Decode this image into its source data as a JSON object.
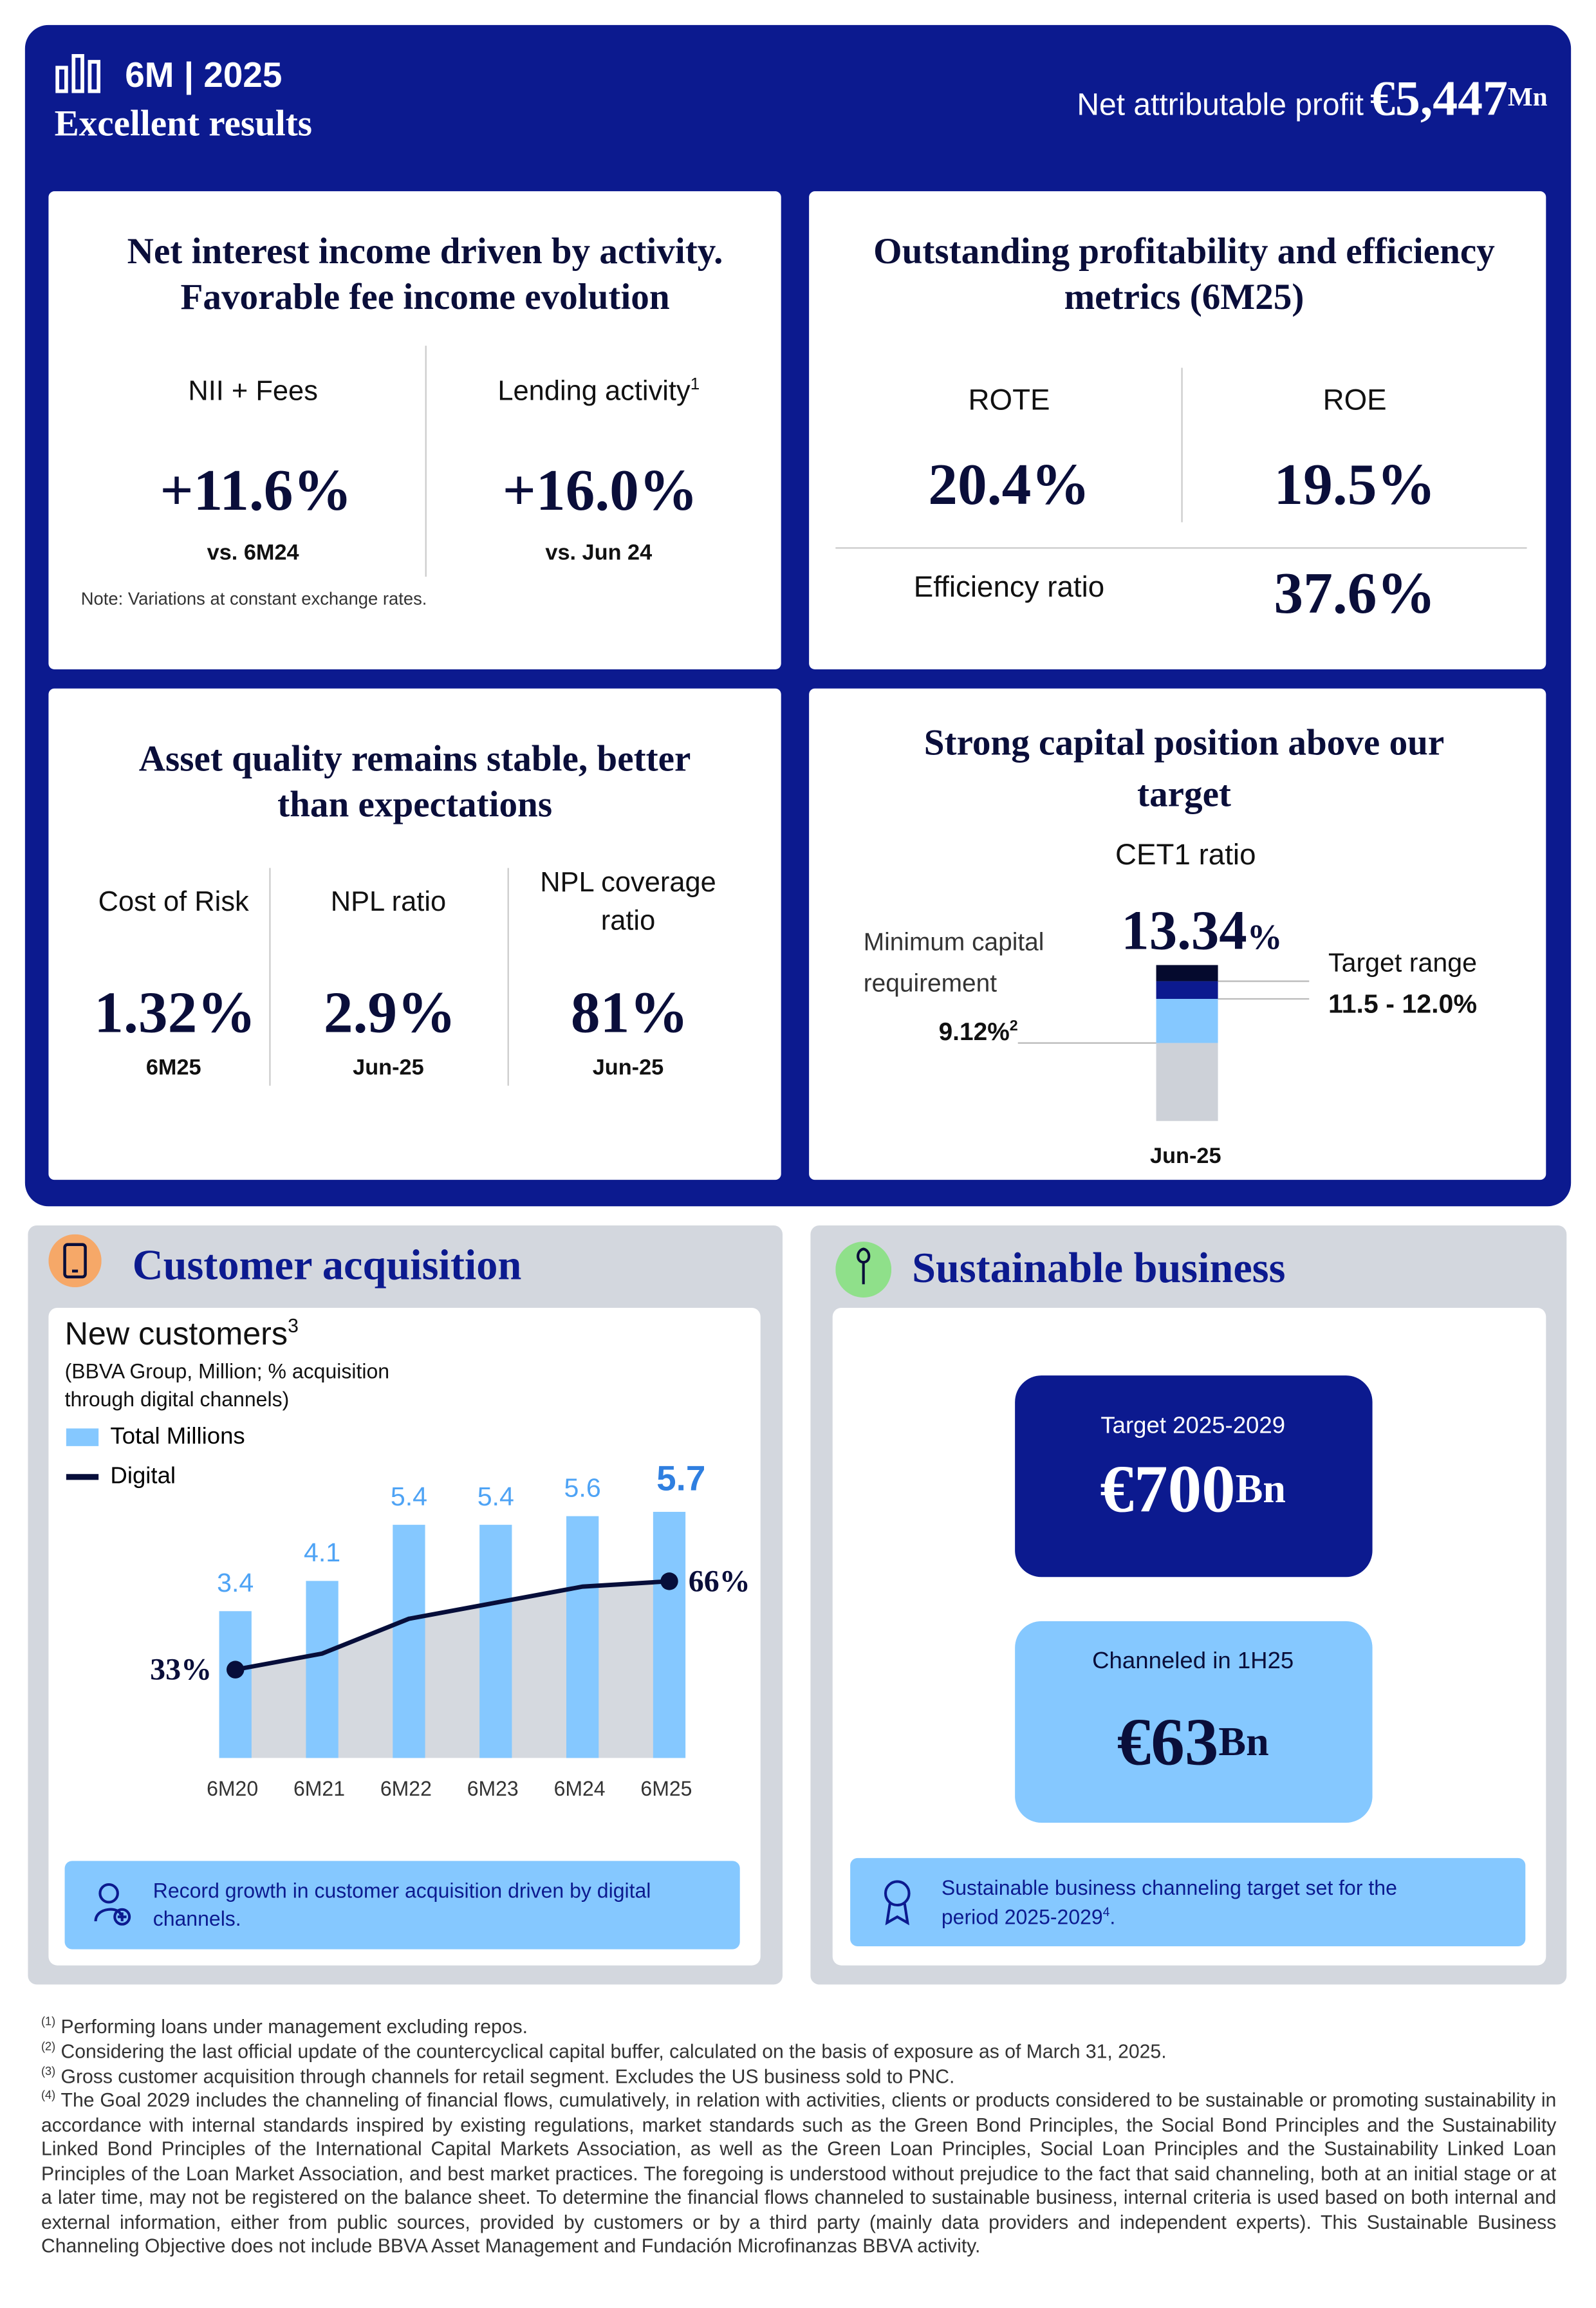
{
  "header": {
    "period": "6M | 2025",
    "subtitle": "Excellent results",
    "profit_label": "Net attributable profit",
    "profit_value": "€5,447",
    "profit_unit": "Mn"
  },
  "income": {
    "title": [
      "Net interest income driven by activity.",
      "Favorable fee income evolution"
    ],
    "metrics": [
      {
        "label": "NII + Fees",
        "value": "+11.6%",
        "period": "vs. 6M24"
      },
      {
        "label": "Lending activity",
        "note": "1",
        "value": "+16.0%",
        "period": "vs. Jun 24"
      }
    ],
    "note": "Note: Variations at constant exchange rates."
  },
  "profitability": {
    "title": [
      "Outstanding profitability and efficiency",
      "metrics (6M25)"
    ],
    "metrics": [
      {
        "label": "ROTE",
        "value": "20.4%"
      },
      {
        "label": "ROE",
        "value": "19.5%"
      },
      {
        "label": "Efficiency ratio",
        "value": "37.6%"
      }
    ]
  },
  "asset_quality": {
    "title": [
      "Asset quality remains stable, better",
      "than expectations"
    ],
    "metrics": [
      {
        "label": [
          "Cost of Risk"
        ],
        "value": "1.32%",
        "period": "6M25"
      },
      {
        "label": [
          "NPL ratio"
        ],
        "value": "2.9%",
        "period": "Jun-25"
      },
      {
        "label": [
          "NPL coverage",
          "ratio"
        ],
        "value": "81%",
        "period": "Jun-25"
      }
    ]
  },
  "capital": {
    "title": [
      "Strong capital position above our",
      "target"
    ],
    "subtitle": "CET1 ratio",
    "value": "13.34",
    "unit": "%",
    "minimum_label": [
      "Minimum capital",
      "requirement"
    ],
    "minimum_value": "9.12%",
    "minimum_note": "2",
    "target_label": "Target range",
    "target_value": "11.5 - 12.0%",
    "period": "Jun-25"
  },
  "customers": {
    "heading": "Customer acquisition",
    "callout": [
      "Record growth in customer acquisition driven by digital",
      "channels."
    ]
  },
  "chart_data": {
    "type": "bar",
    "title": "New customers",
    "title_note": "3",
    "subtitle": [
      "(BBVA Group, Million; % acquisition",
      "through digital channels)"
    ],
    "categories": [
      "6M20",
      "6M21",
      "6M22",
      "6M23",
      "6M24",
      "6M25"
    ],
    "series": [
      {
        "name": "Total Millions",
        "color": "#85c8ff",
        "values": [
          3.4,
          4.1,
          5.4,
          5.4,
          5.6,
          5.7
        ]
      },
      {
        "name": "Digital",
        "type": "line",
        "axis": "y2",
        "color": "#070e3a",
        "values": [
          33,
          39,
          52,
          58,
          64,
          66
        ],
        "value_labels": [
          "33%",
          null,
          null,
          null,
          null,
          "66%"
        ]
      }
    ],
    "ylim": [
      0,
      6.2
    ],
    "y2lim": [
      0,
      100
    ],
    "legend": "top-left",
    "area_color": "#d5d9df"
  },
  "sustainable": {
    "heading": "Sustainable business",
    "target": {
      "label": "Target 2025-2029",
      "value": "€700",
      "unit": "Bn"
    },
    "channeled": {
      "label": "Channeled in 1H25",
      "value": "€63",
      "unit": "Bn"
    },
    "callout": [
      "Sustainable business channeling target set for the",
      "period 2025-2029"
    ],
    "callout_note": "4",
    "callout_end": "."
  },
  "footnotes": [
    {
      "marker": "(1)",
      "text": "Performing loans under management excluding repos."
    },
    {
      "marker": "(2)",
      "text": "Considering the last official update of the countercyclical capital buffer, calculated on the basis of exposure as of March 31, 2025."
    },
    {
      "marker": "(3)",
      "text": "Gross customer acquisition through channels for retail segment. Excludes the US business sold to PNC."
    },
    {
      "marker": "(4)",
      "text": "The Goal 2029  includes the channeling of financial flows, cumulatively, in relation with activities, clients or products considered to be sustainable or promoting sustainability in accordance with internal standards inspired by existing regulations, market standards such as the Green Bond Principles, the Social Bond Principles and the Sustainability Linked Bond Principles of the International Capital Markets Association, as well as the Green Loan Principles, Social Loan Principles and the Sustainability Linked Loan Principles of the Loan Market Association, and best market practices. The foregoing is understood without prejudice to the fact that said channeling, both at an initial stage or at a later time, may not be registered on the balance sheet. To determine the financial flows channeled to sustainable business, internal criteria is used based on both internal and external information, either from public sources, provided by customers or by a third party (mainly data providers and independent experts). This Sustainable Business Channeling Objective does not include BBVA Asset Management and Fundación Microfinanzas BBVA activity."
    }
  ]
}
